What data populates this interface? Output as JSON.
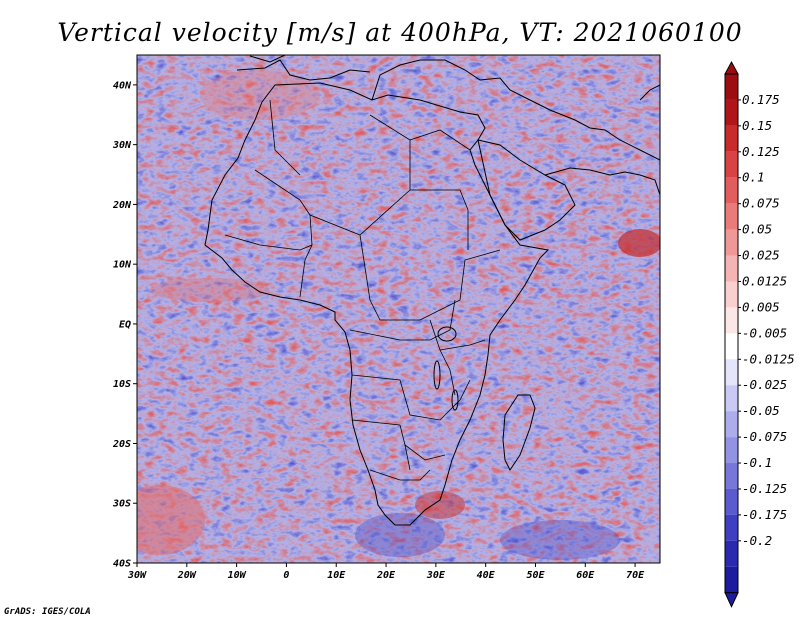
{
  "title": "Vertical velocity [m/s] at 400hPa, VT: 2021060100",
  "footer": "GrADS: IGES/COLA",
  "map": {
    "lon_range": [
      -30,
      75
    ],
    "lat_range": [
      -40,
      45
    ],
    "x_ticks": [
      {
        "lon": -30,
        "label": "30W"
      },
      {
        "lon": -20,
        "label": "20W"
      },
      {
        "lon": -10,
        "label": "10W"
      },
      {
        "lon": 0,
        "label": "0"
      },
      {
        "lon": 10,
        "label": "10E"
      },
      {
        "lon": 20,
        "label": "20E"
      },
      {
        "lon": 30,
        "label": "30E"
      },
      {
        "lon": 40,
        "label": "40E"
      },
      {
        "lon": 50,
        "label": "50E"
      },
      {
        "lon": 60,
        "label": "60E"
      },
      {
        "lon": 70,
        "label": "70E"
      }
    ],
    "y_ticks": [
      {
        "lat": 40,
        "label": "40N"
      },
      {
        "lat": 30,
        "label": "30N"
      },
      {
        "lat": 20,
        "label": "20N"
      },
      {
        "lat": 10,
        "label": "10N"
      },
      {
        "lat": 0,
        "label": "EQ"
      },
      {
        "lat": -10,
        "label": "10S"
      },
      {
        "lat": -20,
        "label": "20S"
      },
      {
        "lat": -30,
        "label": "30S"
      },
      {
        "lat": -40,
        "label": "40S"
      }
    ]
  },
  "colorbar": {
    "levels": [
      {
        "label": "0.175",
        "color": "#b0151a"
      },
      {
        "label": "0.15",
        "color": "#c92a2a"
      },
      {
        "label": "0.125",
        "color": "#d94343"
      },
      {
        "label": "0.1",
        "color": "#e25e5e"
      },
      {
        "label": "0.075",
        "color": "#ea7b7b"
      },
      {
        "label": "0.05",
        "color": "#f09797"
      },
      {
        "label": "0.025",
        "color": "#f5b4b4"
      },
      {
        "label": "0.0125",
        "color": "#f9cfcf"
      },
      {
        "label": "0.005",
        "color": "#fce7e7"
      },
      {
        "label": "-0.005",
        "color": "#ffffff"
      },
      {
        "label": "-0.0125",
        "color": "#e4e4fa"
      },
      {
        "label": "-0.025",
        "color": "#c9c9f3"
      },
      {
        "label": "-0.05",
        "color": "#adadec"
      },
      {
        "label": "-0.075",
        "color": "#9393e4"
      },
      {
        "label": "-0.1",
        "color": "#7777da"
      },
      {
        "label": "-0.125",
        "color": "#5b5bcf"
      },
      {
        "label": "-0.175",
        "color": "#3f3fc2"
      },
      {
        "label": "-0.2",
        "color": "#2a2ab0"
      }
    ],
    "top_color": "#9c0d12",
    "bottom_color": "#1c1c9e"
  }
}
